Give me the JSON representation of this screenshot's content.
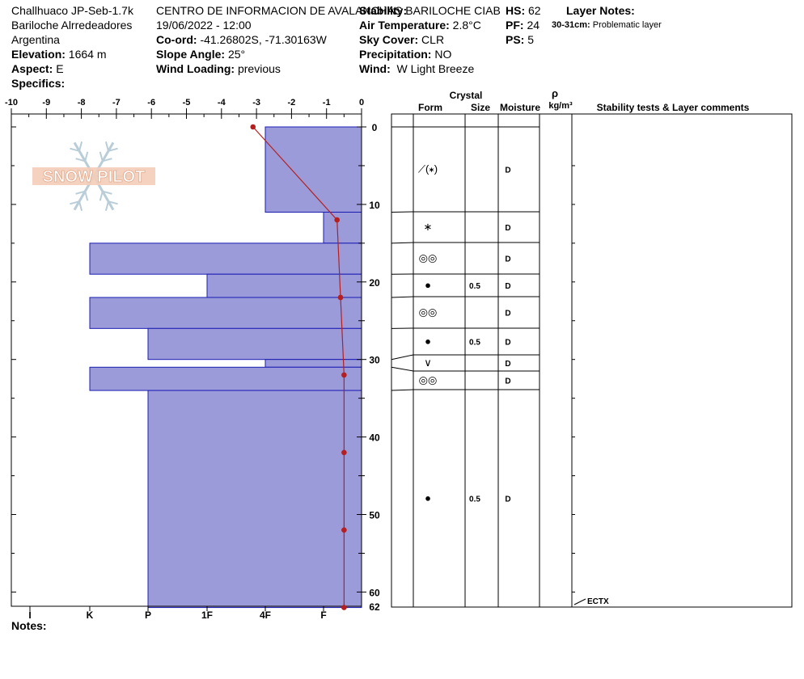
{
  "header": {
    "location_name": "Challhuaco JP-Seb-1.7k",
    "region": "Bariloche Alrredeadores",
    "country": "Argentina",
    "elevation_label": "Elevation:",
    "elevation_value": "1664 m",
    "aspect_label": "Aspect:",
    "aspect_value": "E",
    "specifics_label": "Specifics:",
    "org": "CENTRO DE INFORMACION DE AVALANCHAS BARILOCHE CIAB",
    "datetime": "19/06/2022 - 12:00",
    "coord_label": "Co-ord:",
    "coord_value": "-41.26802S, -71.30163W",
    "slope_label": "Slope Angle:",
    "slope_value": "25°",
    "wind_loading_label": "Wind Loading:",
    "wind_loading_value": "previous",
    "stability_label": "Stability:",
    "air_temp_label": "Air Temperature:",
    "air_temp_value": "2.8°C",
    "sky_label": "Sky Cover:",
    "sky_value": "CLR",
    "precip_label": "Precipitation:",
    "precip_value": "NO",
    "wind_label": "Wind:",
    "wind_value": "W Light Breeze",
    "hs_label": "HS:",
    "hs_value": "62",
    "pf_label": "PF:",
    "pf_value": "24",
    "ps_label": "PS:",
    "ps_value": "5",
    "layer_notes_label": "Layer Notes:",
    "layer_note_range": "30-31cm:",
    "layer_note_text": "Problematic layer",
    "notes_label": "Notes:"
  },
  "table": {
    "crystal_header": "Crystal",
    "form_header": "Form",
    "size_header": "Size",
    "moisture_header": "Moisture",
    "rho_header": "ρ",
    "density_unit": "kg/m³",
    "comments_header": "Stability tests & Layer comments",
    "test_result": "ECTX",
    "layers": [
      {
        "top": 0,
        "bottom": 11,
        "form": "⟋(∗)",
        "size": "",
        "moisture": "D"
      },
      {
        "top": 11,
        "bottom": 15,
        "form": "∗",
        "size": "",
        "moisture": "D"
      },
      {
        "top": 15,
        "bottom": 19,
        "form": "◎◎",
        "size": "",
        "moisture": "D"
      },
      {
        "top": 19,
        "bottom": 22,
        "form": "●",
        "size": "0.5",
        "moisture": "D"
      },
      {
        "top": 22,
        "bottom": 26,
        "form": "◎◎",
        "size": "",
        "moisture": "D"
      },
      {
        "top": 26,
        "bottom": 29.5,
        "form": "●",
        "size": "0.5",
        "moisture": "D"
      },
      {
        "top": 29.5,
        "bottom": 31.5,
        "form": "∨",
        "size": "",
        "moisture": "D"
      },
      {
        "top": 31.5,
        "bottom": 34,
        "form": "◎◎",
        "size": "",
        "moisture": "D"
      },
      {
        "top": 34,
        "bottom": 62,
        "form": "●",
        "size": "0.5",
        "moisture": "D"
      }
    ]
  },
  "chart_data": {
    "type": "snow-profile",
    "temperature_axis": {
      "ticks": [
        -10,
        -9,
        -8,
        -7,
        -6,
        -5,
        -4,
        -3,
        -2,
        -1,
        0
      ],
      "range": [
        -10,
        0
      ]
    },
    "depth_axis": {
      "ticks": [
        0,
        10,
        20,
        30,
        40,
        50,
        60
      ],
      "max_label": "62",
      "range": [
        0,
        62
      ]
    },
    "hardness_labels": [
      "I",
      "K",
      "P",
      "1F",
      "4F",
      "F"
    ],
    "hardness_layers": [
      {
        "top": 0,
        "bottom": 11,
        "hardness": "4F"
      },
      {
        "top": 11,
        "bottom": 15,
        "hardness": "F"
      },
      {
        "top": 15,
        "bottom": 19,
        "hardness": "K"
      },
      {
        "top": 19,
        "bottom": 22,
        "hardness": "1F"
      },
      {
        "top": 22,
        "bottom": 26,
        "hardness": "K"
      },
      {
        "top": 26,
        "bottom": 30,
        "hardness": "P"
      },
      {
        "top": 30,
        "bottom": 31,
        "hardness": "4F"
      },
      {
        "top": 31,
        "bottom": 34,
        "hardness": "K"
      },
      {
        "top": 34,
        "bottom": 62,
        "hardness": "P"
      }
    ],
    "temperature_profile": [
      {
        "depth": 0,
        "temp": -3.1
      },
      {
        "depth": 12,
        "temp": -0.7
      },
      {
        "depth": 22,
        "temp": -0.6
      },
      {
        "depth": 32,
        "temp": -0.5
      },
      {
        "depth": 42,
        "temp": -0.5
      },
      {
        "depth": 52,
        "temp": -0.5
      },
      {
        "depth": 62,
        "temp": -0.5
      }
    ],
    "colors": {
      "hardness_fill": "#9b9bd9",
      "hardness_stroke": "#1c1cb4",
      "temperature": "#b51f1f",
      "watermark": "#b9cdd8"
    }
  },
  "watermark": {
    "text": "SNOW PILOT"
  }
}
